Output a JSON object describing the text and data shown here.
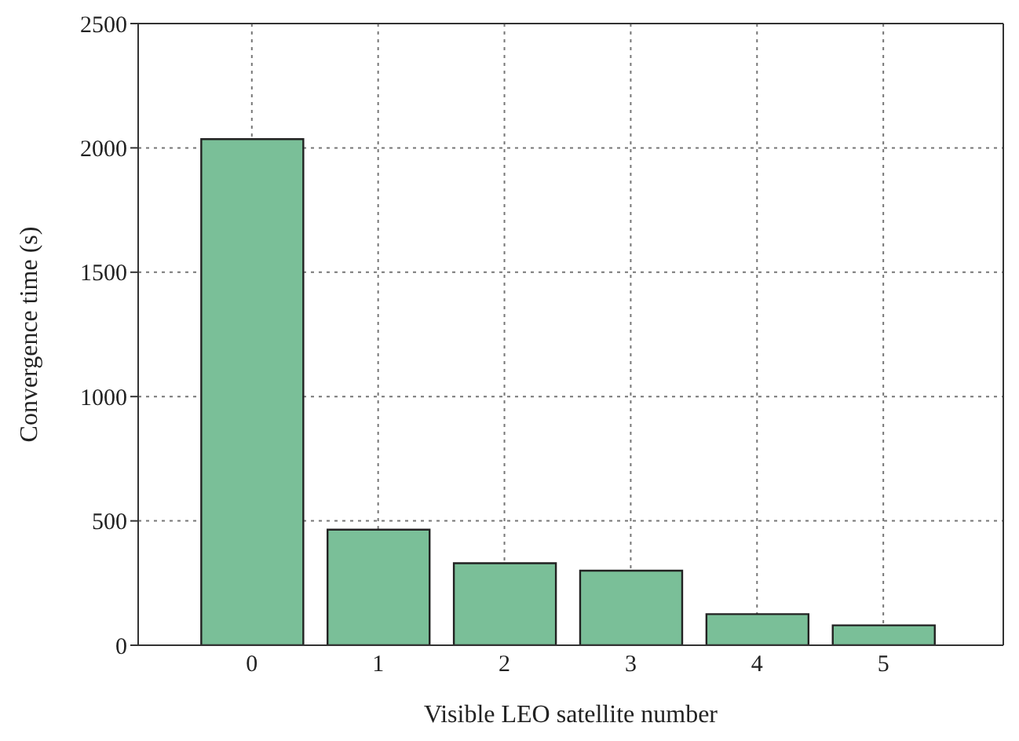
{
  "chart_data": {
    "type": "bar",
    "xlabel": "Visible LEO satellite number",
    "ylabel": "Convergence time (s)",
    "categories": [
      "0",
      "1",
      "2",
      "3",
      "4",
      "5"
    ],
    "values": [
      2035,
      465,
      330,
      300,
      125,
      80
    ],
    "color": "#7abf98",
    "ylim": [
      0,
      2500
    ],
    "yticks": [
      0,
      500,
      1000,
      1500,
      2000,
      2500
    ],
    "grid": true,
    "legend": false
  }
}
